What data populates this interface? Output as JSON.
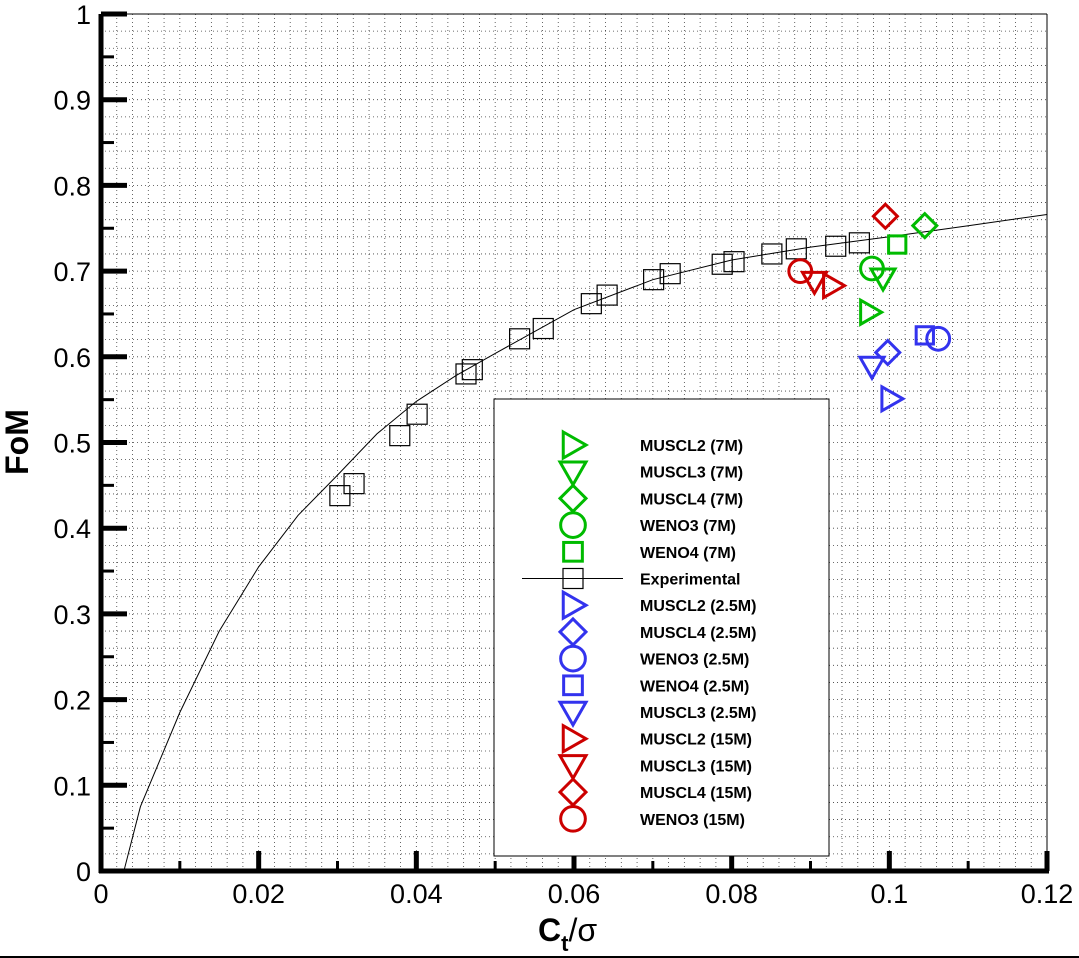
{
  "chart_data": {
    "type": "scatter",
    "title": "",
    "xlabel_main": "C",
    "xlabel_sub": "t",
    "xlabel_tail": "/σ",
    "ylabel": "FoM",
    "xlim": [
      0,
      0.12
    ],
    "ylim": [
      0,
      1
    ],
    "x_ticks": [
      "0",
      "0.02",
      "0.04",
      "0.06",
      "0.08",
      "0.1",
      "0.12"
    ],
    "y_ticks": [
      "0",
      "0.1",
      "0.2",
      "0.3",
      "0.4",
      "0.5",
      "0.6",
      "0.7",
      "0.8",
      "0.9",
      "1"
    ],
    "grid": "dotted",
    "legend_position": "lower-right",
    "fit_curve": {
      "name": "Experimental",
      "x": [
        0.0029,
        0.005,
        0.01,
        0.015,
        0.02,
        0.025,
        0.03,
        0.035,
        0.04,
        0.045,
        0.05,
        0.06,
        0.07,
        0.08,
        0.09,
        0.1,
        0.11,
        0.12
      ],
      "y": [
        0.0,
        0.075,
        0.185,
        0.28,
        0.355,
        0.415,
        0.462,
        0.51,
        0.548,
        0.578,
        0.604,
        0.655,
        0.69,
        0.713,
        0.728,
        0.74,
        0.753,
        0.766
      ]
    },
    "series": [
      {
        "name": "MUSCL2 (7M)",
        "marker": "triangle-right",
        "color": "#00bb00",
        "x": [
          0.0975
        ],
        "y": [
          0.652
        ]
      },
      {
        "name": "MUSCL3 (7M)",
        "marker": "triangle-down",
        "color": "#00bb00",
        "x": [
          0.0992
        ],
        "y": [
          0.692
        ]
      },
      {
        "name": "MUSCL4 (7M)",
        "marker": "diamond",
        "color": "#00bb00",
        "x": [
          0.1045
        ],
        "y": [
          0.753
        ]
      },
      {
        "name": "WENO3 (7M)",
        "marker": "circle",
        "color": "#00bb00",
        "x": [
          0.0978
        ],
        "y": [
          0.703
        ]
      },
      {
        "name": "WENO4 (7M)",
        "marker": "square",
        "color": "#00bb00",
        "x": [
          0.101
        ],
        "y": [
          0.731
        ]
      },
      {
        "name": "Experimental",
        "marker": "square-open",
        "color": "#000000",
        "with_line": true,
        "x": [
          0.0303,
          0.0321,
          0.0379,
          0.0401,
          0.0463,
          0.0471,
          0.0531,
          0.0561,
          0.0622,
          0.0642,
          0.0701,
          0.0722,
          0.0788,
          0.0803,
          0.0851,
          0.0882,
          0.0932,
          0.0962
        ],
        "y": [
          0.438,
          0.452,
          0.508,
          0.533,
          0.58,
          0.585,
          0.621,
          0.633,
          0.662,
          0.672,
          0.69,
          0.697,
          0.708,
          0.711,
          0.72,
          0.726,
          0.729,
          0.733
        ]
      },
      {
        "name": "MUSCL2 (2.5M)",
        "marker": "triangle-right",
        "color": "#3333ee",
        "x": [
          0.1002
        ],
        "y": [
          0.551
        ]
      },
      {
        "name": "MUSCL4 (2.5M)",
        "marker": "diamond",
        "color": "#3333ee",
        "x": [
          0.0998
        ],
        "y": [
          0.605
        ]
      },
      {
        "name": "WENO3 (2.5M)",
        "marker": "circle",
        "color": "#3333ee",
        "x": [
          0.1062
        ],
        "y": [
          0.621
        ]
      },
      {
        "name": "WENO4 (2.5M)",
        "marker": "square",
        "color": "#3333ee",
        "x": [
          0.1045
        ],
        "y": [
          0.625
        ]
      },
      {
        "name": "MUSCL3 (2.5M)",
        "marker": "triangle-down",
        "color": "#3333ee",
        "x": [
          0.0978
        ],
        "y": [
          0.589
        ]
      },
      {
        "name": "MUSCL2 (15M)",
        "marker": "triangle-right",
        "color": "#cc0000",
        "x": [
          0.0928
        ],
        "y": [
          0.683
        ]
      },
      {
        "name": "MUSCL3 (15M)",
        "marker": "triangle-down",
        "color": "#cc0000",
        "x": [
          0.0905
        ],
        "y": [
          0.688
        ]
      },
      {
        "name": "MUSCL4 (15M)",
        "marker": "diamond",
        "color": "#cc0000",
        "x": [
          0.0995
        ],
        "y": [
          0.764
        ]
      },
      {
        "name": "WENO3 (15M)",
        "marker": "circle",
        "color": "#cc0000",
        "x": [
          0.0887
        ],
        "y": [
          0.7
        ]
      }
    ]
  }
}
